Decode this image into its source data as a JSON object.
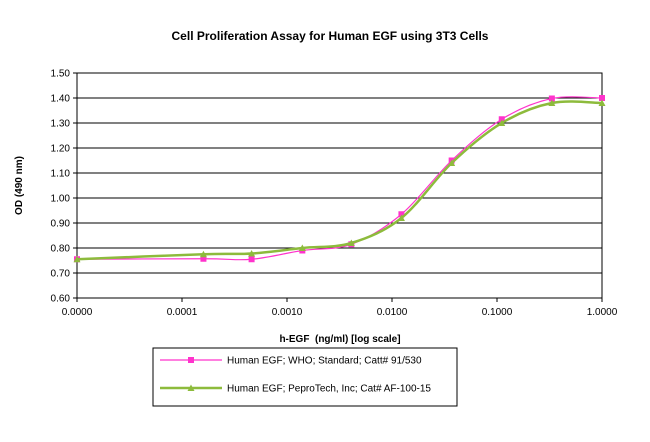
{
  "chart_data": {
    "type": "line",
    "title": "Cell Proliferation Assay for Human EGF using 3T3 Cells",
    "xlabel": "h-EGF  (ng/ml) [log scale]",
    "ylabel": "OD (490 nm)",
    "xscale": "log",
    "xlim": [
      1e-05,
      1.0
    ],
    "ylim": [
      0.6,
      1.5
    ],
    "x_tick_values": [
      1e-05,
      0.0001,
      0.001,
      0.01,
      0.1,
      1.0
    ],
    "x_tick_labels": [
      "0.0000",
      "0.0001",
      "0.0010",
      "0.0100",
      "0.1000",
      "1.0000"
    ],
    "y_tick_values": [
      0.6,
      0.7,
      0.8,
      0.9,
      1.0,
      1.1,
      1.2,
      1.3,
      1.4,
      1.5
    ],
    "y_tick_labels": [
      "0.60",
      "0.70",
      "0.80",
      "0.90",
      "1.00",
      "1.10",
      "1.20",
      "1.30",
      "1.40",
      "1.50"
    ],
    "grid": "horizontal",
    "legend_position": "bottom",
    "series": [
      {
        "name": "Human EGF; WHO; Standard; Catt# 91/530",
        "color": "#ff33cc",
        "marker": "square",
        "x": [
          1e-05,
          0.00016,
          0.00046,
          0.0014,
          0.0041,
          0.0123,
          0.037,
          0.111,
          0.333,
          1.0
        ],
        "y": [
          0.755,
          0.757,
          0.755,
          0.79,
          0.815,
          0.935,
          1.15,
          1.315,
          1.398,
          1.4
        ]
      },
      {
        "name": "Human EGF; PeproTech, Inc; Cat# AF-100-15",
        "color": "#8dbb3c",
        "marker": "triangle",
        "x": [
          1e-05,
          0.00016,
          0.00046,
          0.0014,
          0.0041,
          0.0123,
          0.037,
          0.111,
          0.333,
          1.0
        ],
        "y": [
          0.755,
          0.775,
          0.778,
          0.8,
          0.82,
          0.92,
          1.14,
          1.3,
          1.38,
          1.38
        ]
      }
    ]
  }
}
